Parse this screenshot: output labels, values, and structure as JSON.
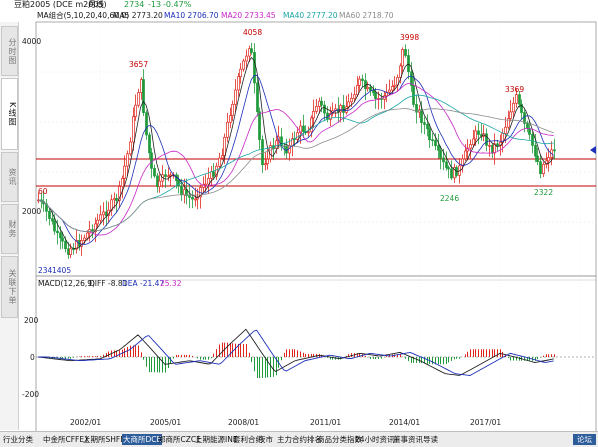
{
  "header": {
    "title": "豆粕2005 (DCE m2005)",
    "period": "月线",
    "price": "2734",
    "change": "-13",
    "change_pct": "-0.47%"
  },
  "ma_legend": {
    "label": "MA组合(5,10,20,40,60,0)",
    "ma5": "MA5 2773.20",
    "ma10": "MA10 2706.70",
    "ma20": "MA20 2733.45",
    "ma40": "MA40 2777.20",
    "ma60": "MA60 2718.70"
  },
  "side_tabs": {
    "tab1": "分时图",
    "tab2": "K线图",
    "tab3": "资讯",
    "tab4": "财务",
    "tab5": "关联下单"
  },
  "price_axis": {
    "top": "4000",
    "mid": "2000"
  },
  "macd_legend": {
    "label": "MACD(12,26,9)",
    "diff": "DIFF -8.81",
    "dea": "DEA -21.47",
    "macd": "25.32"
  },
  "macd_axis": {
    "p200": "200",
    "zero": "0",
    "m200": "-200"
  },
  "x_axis": [
    "2002/01",
    "2005/01",
    "2008/01",
    "2011/01",
    "2014/01",
    "2017/01"
  ],
  "annotations": {
    "high_2004": "3657",
    "high_2008": "4058",
    "high_2012": "3998",
    "high_2017": "3369",
    "low_2001": "1405",
    "low_prefix": "234",
    "low_2015": "2246",
    "low_2019": "2322",
    "left_60": "60"
  },
  "bottom_tabs": [
    "行业分类",
    "中金所CFFEX",
    "上期所SHFE",
    "大商所DCE",
    "郑商所CZCE",
    "上期能源INE",
    "套利合约",
    "夜市",
    "主力合约排名",
    "商品分类指数",
    "24小时资讯",
    "董事资讯导读"
  ],
  "bottom_active": "大商所DCE",
  "corner_button": "论坛",
  "colors": {
    "up": "#e0261c",
    "down": "#1f9a3a",
    "ma5": "#222222",
    "ma10": "#1c2fb8",
    "ma20": "#c828c8",
    "ma40": "#1aa5a5",
    "ma60": "#8c8c8c",
    "support": "#c00000"
  }
}
